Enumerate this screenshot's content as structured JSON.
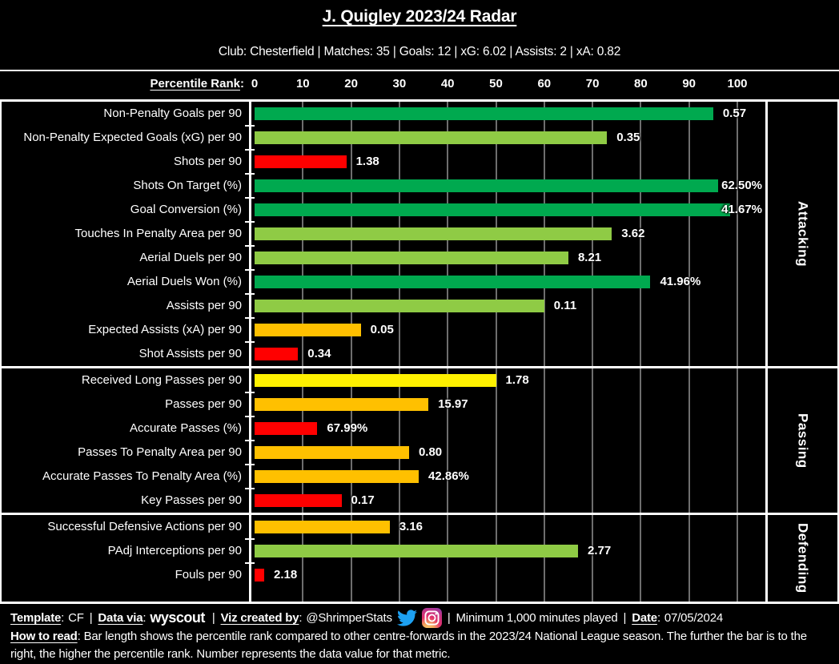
{
  "header": {
    "title": "J. Quigley 2023/24 Radar",
    "subtitle": "Club: Chesterfield | Matches: 35 | Goals: 12 | xG: 6.02 | Assists: 2 | xA: 0.82"
  },
  "axis": {
    "label": "Percentile Rank",
    "suffix": ":"
  },
  "colors": {
    "green": "#00A94F",
    "light_green": "#8FCB45",
    "red": "#FF0000",
    "amber": "#FFC000",
    "yellow": "#FFF100",
    "gridline": "#6E6E6E",
    "background": "#000000",
    "text": "#FFFFFF",
    "twitter_blue": "#1DA1F2"
  },
  "icons": {
    "twitter": "twitter-bird-icon",
    "instagram": "instagram-camera-icon"
  },
  "chart_data": {
    "type": "bar",
    "title": "J. Quigley 2023/24 Radar",
    "xlabel": "Percentile Rank",
    "xlim": [
      0,
      100
    ],
    "x_ticks": [
      0,
      10,
      20,
      30,
      40,
      50,
      60,
      70,
      80,
      90,
      100
    ],
    "grid": true,
    "orientation": "horizontal",
    "note": "bar length = percentile rank vs 2023/24 National League centre-forwards; label = data value",
    "groups": [
      {
        "name": "Attacking",
        "extra_bottom": 0,
        "rows": [
          {
            "metric": "Non-Penalty Goals per 90",
            "value": "0.57",
            "percentile": 95,
            "color": "green"
          },
          {
            "metric": "Non-Penalty Expected Goals (xG) per 90",
            "value": "0.35",
            "percentile": 73,
            "color": "light_green"
          },
          {
            "metric": "Shots per 90",
            "value": "1.38",
            "percentile": 19,
            "color": "red"
          },
          {
            "metric": "Shots On Target (%)",
            "value": "62.50%",
            "percentile": 96,
            "color": "green"
          },
          {
            "metric": "Goal Conversion (%)",
            "value": "41.67%",
            "percentile": 98.5,
            "color": "green"
          },
          {
            "metric": "Touches In Penalty Area per 90",
            "value": "3.62",
            "percentile": 74,
            "color": "light_green"
          },
          {
            "metric": "Aerial Duels per 90",
            "value": "8.21",
            "percentile": 65,
            "color": "light_green"
          },
          {
            "metric": "Aerial Duels Won (%)",
            "value": "41.96%",
            "percentile": 82,
            "color": "green"
          },
          {
            "metric": "Assists per 90",
            "value": "0.11",
            "percentile": 60,
            "color": "light_green"
          },
          {
            "metric": "Expected Assists (xA) per 90",
            "value": "0.05",
            "percentile": 22,
            "color": "amber"
          },
          {
            "metric": "Shot Assists per 90",
            "value": "0.34",
            "percentile": 9,
            "color": "red"
          }
        ]
      },
      {
        "name": "Passing",
        "extra_bottom": 0,
        "rows": [
          {
            "metric": "Received Long Passes per 90",
            "value": "1.78",
            "percentile": 50,
            "color": "yellow"
          },
          {
            "metric": "Passes per 90",
            "value": "15.97",
            "percentile": 36,
            "color": "amber"
          },
          {
            "metric": "Accurate Passes (%)",
            "value": "67.99%",
            "percentile": 13,
            "color": "red"
          },
          {
            "metric": "Passes To Penalty Area per 90",
            "value": "0.80",
            "percentile": 32,
            "color": "amber"
          },
          {
            "metric": "Accurate Passes To Penalty Area (%)",
            "value": "42.86%",
            "percentile": 34,
            "color": "amber"
          },
          {
            "metric": "Key Passes per 90",
            "value": "0.17",
            "percentile": 18,
            "color": "red"
          }
        ]
      },
      {
        "name": "Defending",
        "extra_bottom": 18,
        "rows": [
          {
            "metric": "Successful Defensive Actions per 90",
            "value": "3.16",
            "percentile": 28,
            "color": "amber"
          },
          {
            "metric": "PAdj Interceptions per 90",
            "value": "2.77",
            "percentile": 67,
            "color": "light_green"
          },
          {
            "metric": "Fouls per 90",
            "value": "2.18",
            "percentile": 2,
            "color": "red"
          }
        ]
      }
    ]
  },
  "footer": {
    "template_label": "Template",
    "template_value": "CF",
    "data_via_label": "Data via",
    "data_via_value": "wyscout",
    "viz_label": "Viz created by",
    "viz_value": "@ShrimperStats",
    "minutes_note": "Minimum 1,000 minutes played",
    "date_label": "Date",
    "date_value": "07/05/2024",
    "separator": "|",
    "colon": ":",
    "how_label": "How to read",
    "how_text": "Bar length shows the percentile rank compared to other centre-forwards in the 2023/24 National League season. The further the bar is to the right, the higher the percentile rank. Number represents the data value for that metric."
  }
}
